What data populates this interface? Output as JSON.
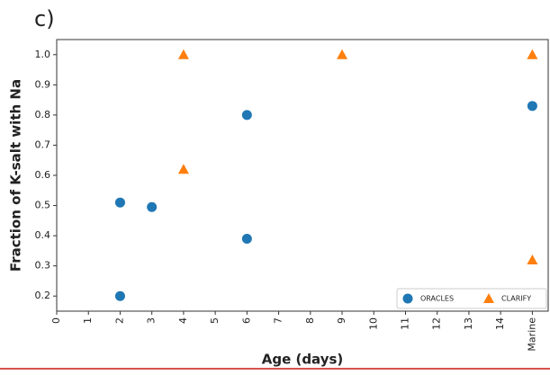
{
  "chart_data": {
    "type": "scatter",
    "panel_label": "c)",
    "x_label": "Age (days)",
    "y_label": "Fraction of K-salt with Na",
    "series": [
      {
        "name": "ORACLES",
        "color": "#1f77b4",
        "marker": "circle",
        "x": [
          2,
          2,
          3,
          6,
          6,
          15
        ],
        "values": [
          0.51,
          0.2,
          0.495,
          0.8,
          0.39,
          0.83
        ]
      },
      {
        "name": "CLARIFY",
        "color": "#ff7f0e",
        "marker": "triangle",
        "x": [
          4,
          4,
          9,
          15,
          15
        ],
        "values": [
          1.0,
          0.62,
          1.0,
          1.0,
          0.32
        ]
      }
    ],
    "xlim": [
      0,
      15.5
    ],
    "ylim": [
      0.15,
      1.05
    ],
    "xticks": [
      0,
      1,
      2,
      3,
      4,
      5,
      6,
      7,
      8,
      9,
      10,
      11,
      12,
      13,
      14,
      {
        "value": 15,
        "label": "Marine"
      }
    ],
    "yticks": [
      0.2,
      0.3,
      0.4,
      0.5,
      0.6,
      0.7,
      0.8,
      0.9,
      {
        "value": 1,
        "label": "1.0"
      }
    ],
    "legend": "lower right",
    "grid": false
  }
}
